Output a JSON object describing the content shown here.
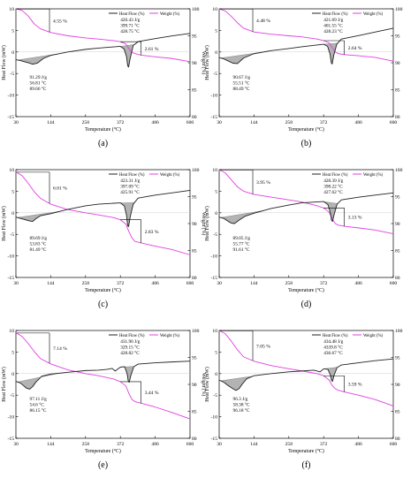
{
  "figure": {
    "common": {
      "xlabel": "Temperature (°C)",
      "ylabel_left": "Heat Flow (mW)",
      "ylabel_right": "Weight (%)",
      "x_ticks": [
        "30",
        "144",
        "258",
        "372",
        "486",
        "600"
      ],
      "y_left_ticks": [
        "-15",
        "-10",
        "-5",
        "0",
        "5",
        "10"
      ],
      "y_right_ticks": [
        "80",
        "85",
        "90",
        "95",
        "100"
      ],
      "legend_heat": "Heat Flow (%)",
      "legend_weight": "Weight (%)",
      "colors": {
        "heat_flow": "#222222",
        "weight": "#e040e0",
        "shade": "#9a9a9a",
        "annotation": "#000000"
      }
    }
  },
  "chart_data": [
    {
      "type": "line",
      "panel_label": "(a)",
      "xlim": [
        30,
        600
      ],
      "ylim_left": [
        -15,
        10
      ],
      "ylim_right": [
        80,
        100
      ],
      "grid": false,
      "legend": "top-right",
      "series": [
        {
          "name": "Heat Flow (%)",
          "axis": "left",
          "x": [
            30,
            45,
            60,
            75,
            85,
            100,
            120,
            144,
            200,
            258,
            300,
            372,
            384,
            392,
            396,
            399,
            404,
            414,
            430,
            486,
            540,
            600
          ],
          "y": [
            -1.8,
            -2.0,
            -2.3,
            -2.6,
            -2.85,
            -2.6,
            -1.5,
            -0.8,
            0.0,
            0.6,
            0.9,
            1.3,
            0.7,
            -1.0,
            -3.2,
            -3.5,
            -1.5,
            1.5,
            2.4,
            3.1,
            3.7,
            4.3
          ]
        },
        {
          "name": "Weight (%)",
          "axis": "right",
          "x": [
            30,
            50,
            70,
            90,
            110,
            144,
            200,
            258,
            300,
            350,
            372,
            390,
            400,
            410,
            420,
            440,
            486,
            540,
            600
          ],
          "y": [
            100,
            99.7,
            98.7,
            97.2,
            96.3,
            95.6,
            95.0,
            94.6,
            94.4,
            94.1,
            93.9,
            93.5,
            92.6,
            91.9,
            91.7,
            91.4,
            91.1,
            90.8,
            90.2
          ]
        }
      ],
      "annotations": [
        {
          "type": "mass_loss",
          "label": "4.55 %"
        },
        {
          "type": "mass_loss",
          "label": "2.61 %"
        },
        {
          "type": "peak",
          "lines": [
            "91.29 J/g",
            "56.81 °C",
            "89.66 °C"
          ]
        },
        {
          "type": "peak",
          "lines": [
            "420.43 J/g",
            "399.71 °C",
            "428.75 °C"
          ]
        }
      ]
    },
    {
      "type": "line",
      "panel_label": "(b)",
      "xlim": [
        30,
        600
      ],
      "ylim_left": [
        -15,
        10
      ],
      "ylim_right": [
        80,
        100
      ],
      "grid": false,
      "legend": "top-right",
      "series": [
        {
          "name": "Heat Flow (%)",
          "axis": "left",
          "x": [
            30,
            45,
            60,
            75,
            90,
            110,
            144,
            200,
            258,
            300,
            372,
            385,
            393,
            397,
            400,
            405,
            415,
            430,
            486,
            540,
            600
          ],
          "y": [
            -1.3,
            -1.6,
            -2.1,
            -2.6,
            -2.7,
            -1.4,
            -0.4,
            0.3,
            0.8,
            1.2,
            1.8,
            1.3,
            -0.5,
            -2.5,
            -2.8,
            -0.8,
            1.8,
            3.0,
            3.8,
            4.6,
            5.5
          ]
        },
        {
          "name": "Weight (%)",
          "axis": "right",
          "x": [
            30,
            50,
            70,
            90,
            110,
            144,
            200,
            258,
            300,
            350,
            372,
            390,
            400,
            410,
            420,
            440,
            486,
            540,
            600
          ],
          "y": [
            100,
            99.6,
            98.6,
            97.4,
            96.4,
            95.7,
            95.3,
            95.0,
            94.8,
            94.4,
            94.1,
            93.7,
            92.8,
            92.0,
            91.7,
            91.5,
            91.3,
            91.0,
            90.3
          ]
        }
      ],
      "annotations": [
        {
          "type": "mass_loss",
          "label": "4.48 %"
        },
        {
          "type": "mass_loss",
          "label": "2.64 %"
        },
        {
          "type": "peak",
          "lines": [
            "90.67 J/g",
            "55.51 °C",
            "88.49 °C"
          ]
        },
        {
          "type": "peak",
          "lines": [
            "421.69 J/g",
            "401.55 °C",
            "428.23 °C"
          ]
        }
      ]
    },
    {
      "type": "line",
      "panel_label": "(c)",
      "xlim": [
        30,
        600
      ],
      "ylim_left": [
        -15,
        10
      ],
      "ylim_right": [
        80,
        100
      ],
      "grid": false,
      "legend": "top-right",
      "series": [
        {
          "name": "Heat Flow (%)",
          "axis": "left",
          "x": [
            30,
            45,
            60,
            75,
            85,
            95,
            110,
            144,
            200,
            258,
            300,
            372,
            385,
            392,
            396,
            399,
            404,
            414,
            430,
            486,
            540,
            600
          ],
          "y": [
            -1.0,
            -1.3,
            -1.6,
            -1.9,
            -2.0,
            -1.4,
            -0.7,
            -0.2,
            0.8,
            1.6,
            2.0,
            2.3,
            1.6,
            -0.5,
            -3.0,
            -3.2,
            -1.0,
            2.0,
            3.4,
            4.1,
            4.6,
            5.2
          ]
        },
        {
          "name": "Weight (%)",
          "axis": "right",
          "x": [
            30,
            50,
            70,
            90,
            110,
            144,
            200,
            258,
            300,
            350,
            372,
            390,
            400,
            410,
            420,
            440,
            486,
            540,
            600
          ],
          "y": [
            99.6,
            98.9,
            97.5,
            95.9,
            94.7,
            93.6,
            92.6,
            92.0,
            91.6,
            91.1,
            90.7,
            89.9,
            88.5,
            87.3,
            86.7,
            86.4,
            85.8,
            85.2,
            84.2
          ]
        }
      ],
      "annotations": [
        {
          "type": "mass_loss",
          "label": "6.01 %"
        },
        {
          "type": "mass_loss",
          "label": "2.83 %"
        },
        {
          "type": "peak",
          "lines": [
            "89.69 J/g",
            "53.83 °C",
            "81.49 °C"
          ]
        },
        {
          "type": "peak",
          "lines": [
            "423.31 J/g",
            "397.09 °C",
            "425.91 °C"
          ]
        }
      ]
    },
    {
      "type": "line",
      "panel_label": "(d)",
      "xlim": [
        30,
        600
      ],
      "ylim_left": [
        -15,
        10
      ],
      "ylim_right": [
        80,
        100
      ],
      "grid": false,
      "legend": "top-right",
      "series": [
        {
          "name": "Heat Flow (%)",
          "axis": "left",
          "x": [
            30,
            45,
            60,
            70,
            80,
            95,
            115,
            144,
            200,
            258,
            300,
            372,
            386,
            394,
            398,
            401,
            406,
            416,
            430,
            486,
            540,
            600
          ],
          "y": [
            -1.0,
            -1.3,
            -2.0,
            -2.4,
            -2.5,
            -1.7,
            -0.8,
            -0.1,
            1.0,
            1.8,
            2.3,
            2.6,
            1.9,
            0.0,
            -1.8,
            -2.0,
            -0.5,
            2.0,
            3.0,
            3.6,
            4.1,
            4.6
          ]
        },
        {
          "name": "Weight (%)",
          "axis": "right",
          "x": [
            30,
            50,
            70,
            90,
            110,
            144,
            200,
            258,
            300,
            350,
            372,
            390,
            400,
            410,
            420,
            440,
            486,
            540,
            600
          ],
          "y": [
            100,
            99.4,
            98.1,
            96.8,
            96.0,
            95.4,
            94.9,
            94.4,
            94.0,
            93.3,
            92.9,
            92.1,
            90.9,
            90.0,
            89.7,
            89.5,
            89.2,
            88.8,
            88.1
          ]
        }
      ],
      "annotations": [
        {
          "type": "mass_loss",
          "label": "3.95 %"
        },
        {
          "type": "mass_loss",
          "label": "3.13 %"
        },
        {
          "type": "peak",
          "lines": [
            "89.05 J/g",
            "55.77 °C",
            "91.61 °C"
          ]
        },
        {
          "type": "peak",
          "lines": [
            "428.39 J/g",
            "398.22 °C",
            "427.62 °C"
          ]
        }
      ]
    },
    {
      "type": "line",
      "panel_label": "(e)",
      "xlim": [
        30,
        600
      ],
      "ylim_left": [
        -15,
        10
      ],
      "ylim_right": [
        80,
        100
      ],
      "grid": false,
      "legend": "top-right",
      "series": [
        {
          "name": "Heat Flow (%)",
          "axis": "left",
          "x": [
            30,
            45,
            55,
            65,
            75,
            85,
            95,
            115,
            144,
            200,
            258,
            300,
            330,
            345,
            355,
            372,
            386,
            394,
            398,
            401,
            406,
            416,
            430,
            486,
            540,
            600
          ],
          "y": [
            -1.8,
            -2.2,
            -2.8,
            -3.4,
            -3.6,
            -3.0,
            -2.0,
            -0.6,
            -0.1,
            0.3,
            0.7,
            0.8,
            1.0,
            1.2,
            0.6,
            1.5,
            1.6,
            0.0,
            -1.8,
            -2.0,
            -0.5,
            1.6,
            2.2,
            2.5,
            2.7,
            2.9
          ]
        },
        {
          "name": "Weight (%)",
          "axis": "right",
          "x": [
            30,
            50,
            70,
            90,
            110,
            144,
            200,
            258,
            300,
            350,
            372,
            390,
            400,
            410,
            420,
            440,
            486,
            540,
            600
          ],
          "y": [
            99.6,
            98.9,
            97.6,
            96.1,
            94.8,
            93.8,
            92.7,
            92.0,
            91.6,
            91.0,
            90.5,
            89.7,
            88.3,
            87.2,
            86.8,
            86.5,
            85.8,
            84.8,
            83.6
          ]
        }
      ],
      "annotations": [
        {
          "type": "mass_loss",
          "label": "7.14 %"
        },
        {
          "type": "mass_loss",
          "label": "3.44 %"
        },
        {
          "type": "peak",
          "lines": [
            "97.11 J/g",
            "54.6 °C",
            "86.15 °C"
          ]
        },
        {
          "type": "peak",
          "lines": [
            "431.90 J/g",
            "329.15 °C",
            "428.82 °C"
          ]
        }
      ]
    },
    {
      "type": "line",
      "panel_label": "(f)",
      "xlim": [
        30,
        600
      ],
      "ylim_left": [
        -15,
        10
      ],
      "ylim_right": [
        80,
        100
      ],
      "grid": false,
      "legend": "top-right",
      "series": [
        {
          "name": "Heat Flow (%)",
          "axis": "left",
          "x": [
            30,
            45,
            60,
            75,
            85,
            95,
            105,
            120,
            144,
            200,
            258,
            300,
            340,
            360,
            372,
            386,
            394,
            398,
            401,
            406,
            416,
            430,
            486,
            540,
            600
          ],
          "y": [
            -1.5,
            -2.0,
            -2.8,
            -3.5,
            -3.9,
            -3.5,
            -2.5,
            -1.2,
            -0.5,
            0.0,
            0.4,
            0.6,
            0.8,
            0.4,
            1.1,
            1.0,
            -0.3,
            -1.6,
            -1.8,
            -0.4,
            1.4,
            2.0,
            2.5,
            3.0,
            3.4
          ]
        },
        {
          "name": "Weight (%)",
          "axis": "right",
          "x": [
            30,
            50,
            70,
            90,
            110,
            144,
            200,
            258,
            300,
            350,
            372,
            390,
            400,
            410,
            420,
            440,
            486,
            540,
            600
          ],
          "y": [
            100,
            99.4,
            98.0,
            96.4,
            95.1,
            94.3,
            93.5,
            92.9,
            92.5,
            92.0,
            91.6,
            90.8,
            89.8,
            89.2,
            88.9,
            88.6,
            88.0,
            87.2,
            86.0
          ]
        }
      ],
      "annotations": [
        {
          "type": "mass_loss",
          "label": "7.05 %"
        },
        {
          "type": "mass_loss",
          "label": "3.59 %"
        },
        {
          "type": "peak",
          "lines": [
            "96.3 J/g",
            "58.38 °C",
            "96.18 °C"
          ]
        },
        {
          "type": "peak",
          "lines": [
            "434.48 J/g",
            "4339.8 °C",
            "436.67 °C"
          ]
        }
      ]
    }
  ]
}
